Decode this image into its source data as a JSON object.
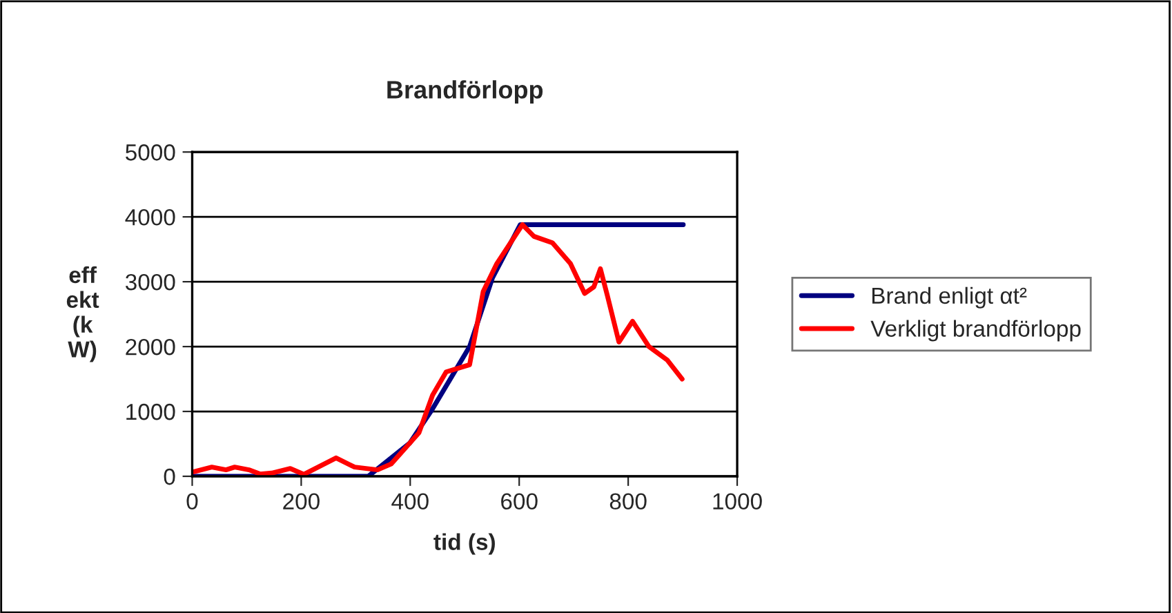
{
  "chart_data": {
    "type": "line",
    "title": "Brandförlopp",
    "xlabel": "tid (s)",
    "ylabel": "eff\nekt\n(k\nW)",
    "xlim": [
      0,
      1000
    ],
    "xticks": [
      0,
      200,
      400,
      600,
      800,
      1000
    ],
    "ylim": [
      0,
      5000
    ],
    "yticks": [
      0,
      1000,
      2000,
      3000,
      4000,
      5000
    ],
    "grid": "y",
    "legend": "right",
    "marker": "none",
    "line_style": "solid",
    "series": [
      {
        "name": "Brand enligt αt²",
        "color": "#000080",
        "x": [
          0,
          323,
          399,
          441,
          509,
          551,
          602,
          901
        ],
        "values": [
          0,
          0,
          510,
          1040,
          2000,
          3060,
          3880,
          3880
        ]
      },
      {
        "name": "Verkligt brandförlopp",
        "color": "#ff0000",
        "x": [
          3,
          36,
          62,
          78,
          104,
          125,
          146,
          180,
          205,
          264,
          298,
          340,
          365,
          416,
          441,
          466,
          509,
          534,
          559,
          606,
          627,
          661,
          694,
          720,
          737,
          749,
          762,
          783,
          808,
          838,
          872,
          899
        ],
        "values": [
          70,
          142,
          100,
          142,
          100,
          35,
          50,
          120,
          30,
          284,
          142,
          100,
          190,
          670,
          1250,
          1610,
          1720,
          2850,
          3280,
          3880,
          3700,
          3600,
          3280,
          2820,
          2920,
          3200,
          2780,
          2070,
          2390,
          2000,
          1790,
          1500
        ]
      }
    ]
  }
}
